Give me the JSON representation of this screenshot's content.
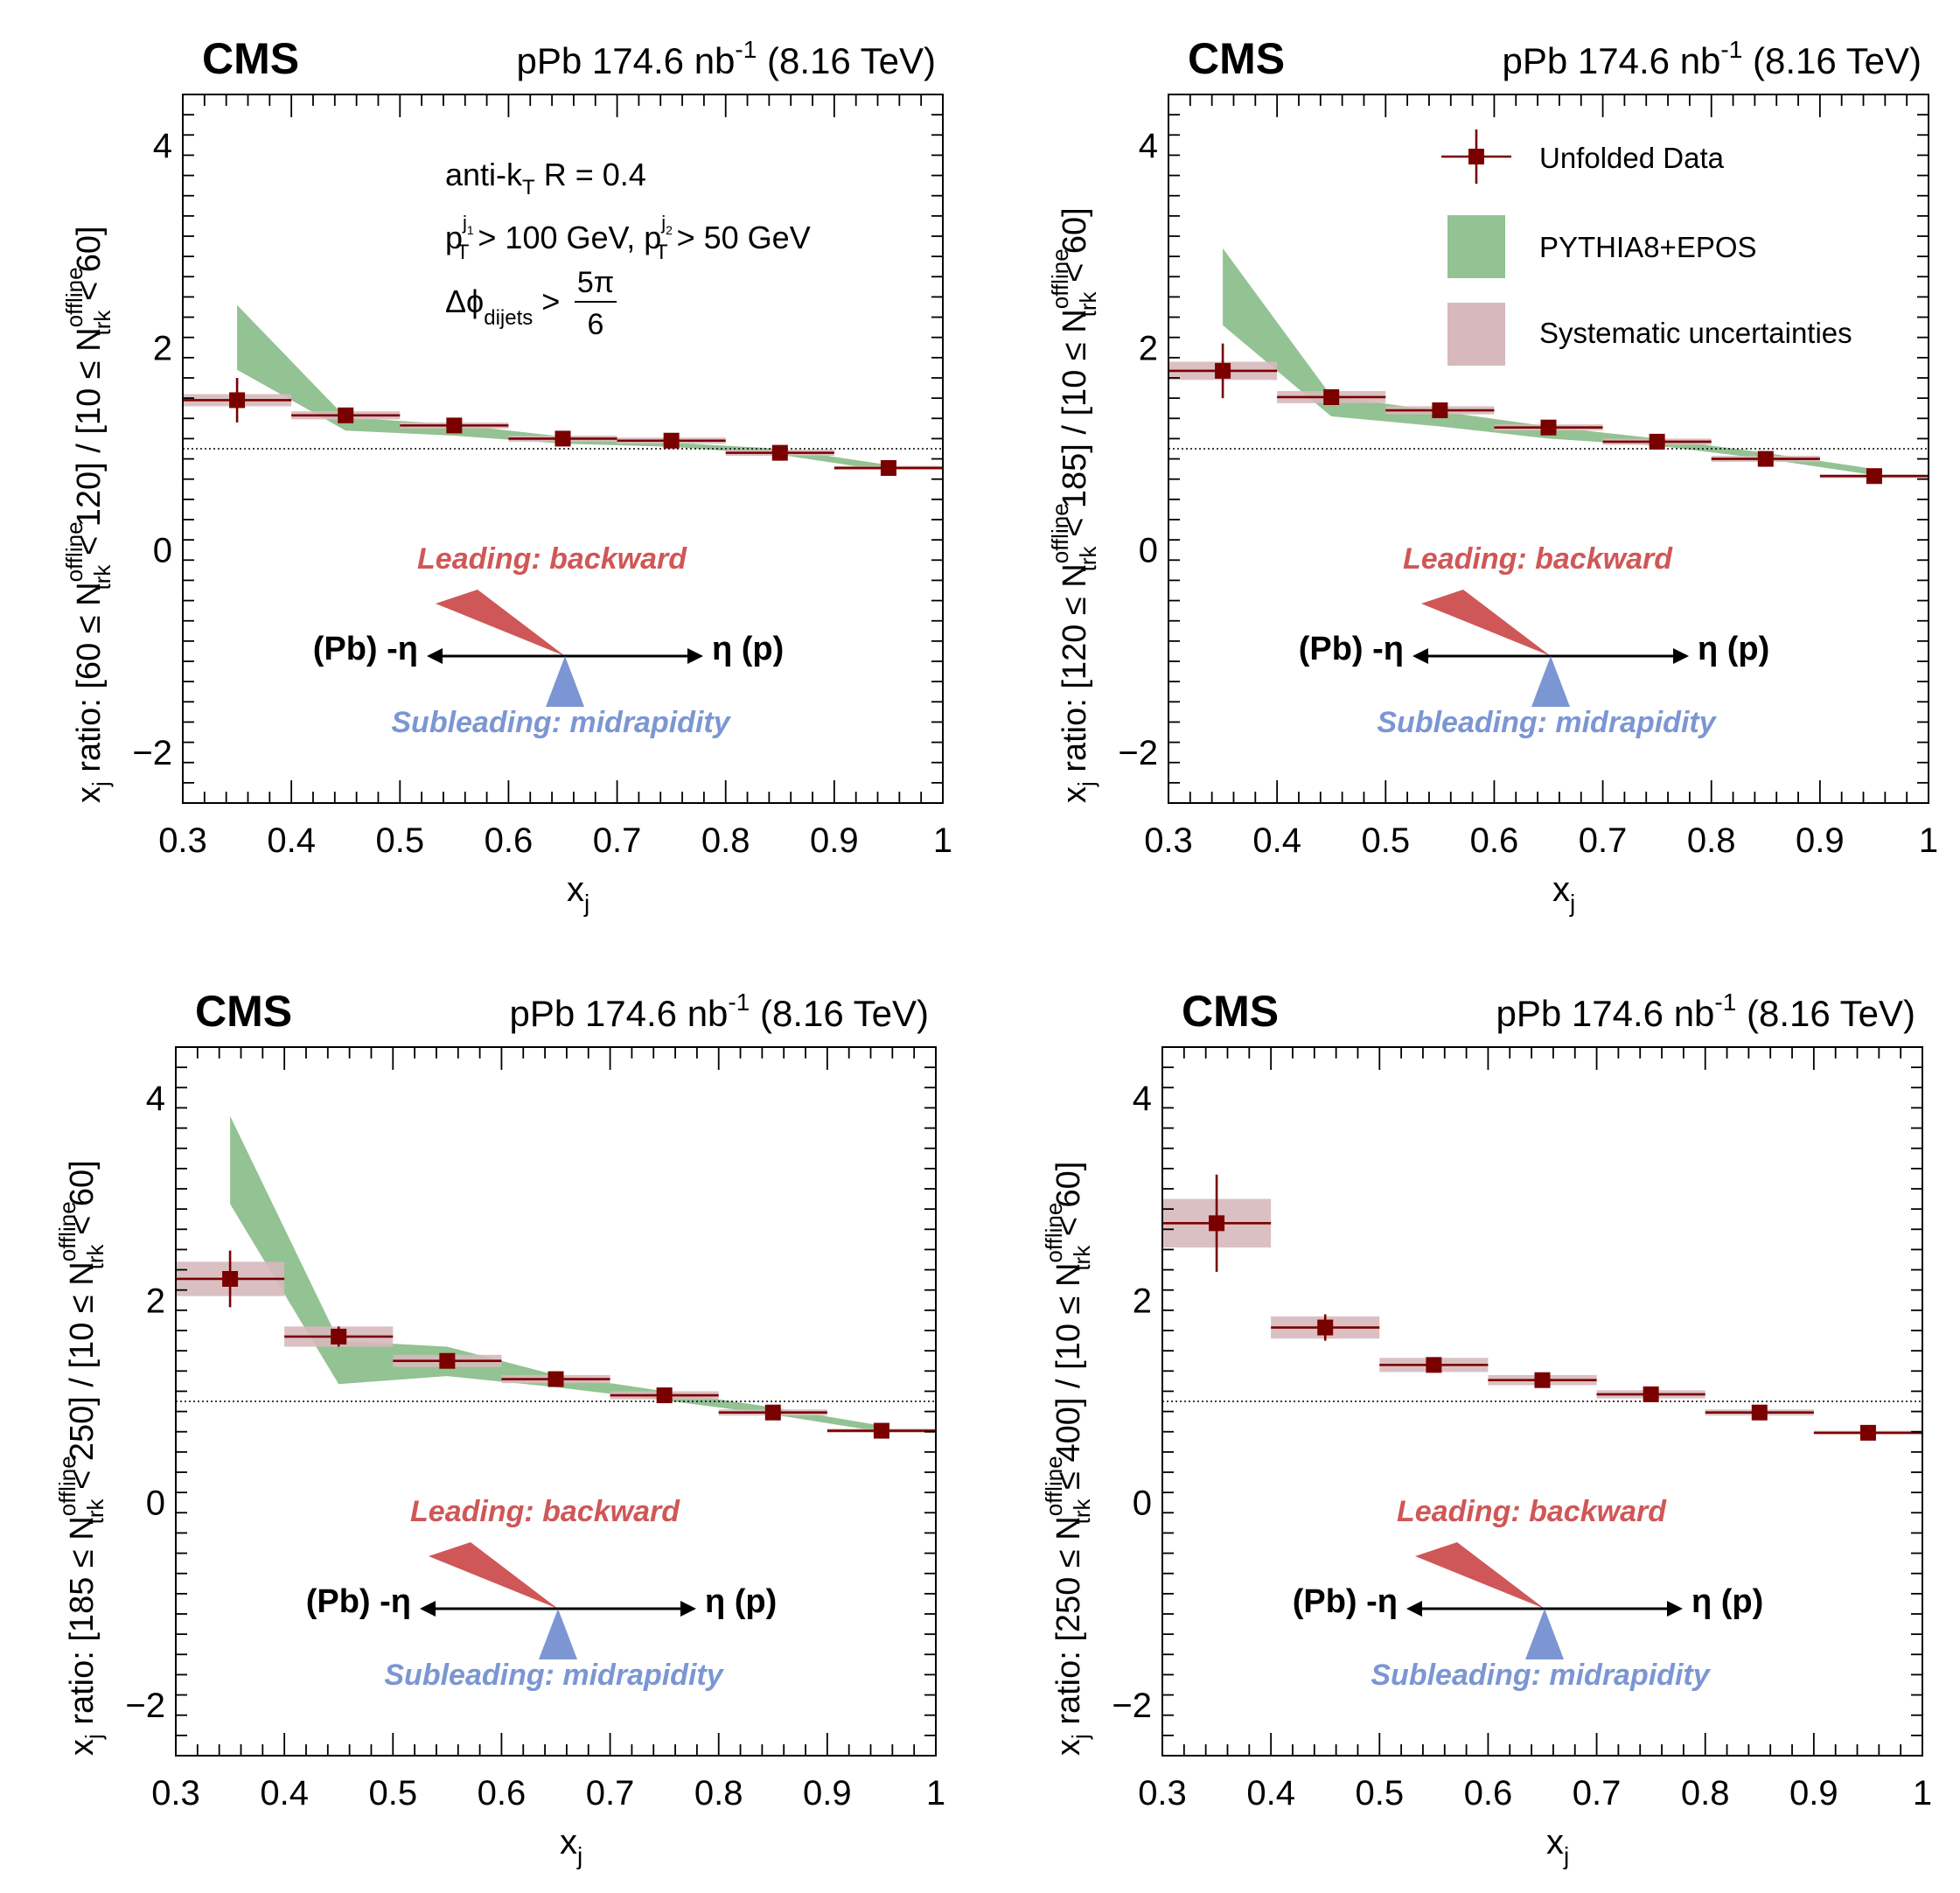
{
  "common": {
    "experiment": "CMS",
    "lumi_prefix": "pPb 174.6 nb",
    "lumi_sup": "-1",
    "energy": "(8.16 TeV)",
    "xlabel": "x",
    "xlabel_sub": "j",
    "xticks": [
      "0.3",
      "0.4",
      "0.5",
      "0.6",
      "0.7",
      "0.8",
      "0.9",
      "1"
    ],
    "yticks": [
      "4",
      "2",
      "0",
      "−2"
    ],
    "dijet_text": {
      "line1": "anti-k",
      "line1_sub": "T",
      "line1_rest": " R = 0.4",
      "line2_a": "p",
      "line2_a_sup": "j",
      "line2_a_sup2": "1",
      "line2_a_sub": "T",
      "line2_b": " > 100 GeV, p",
      "line2_b_sup": "j",
      "line2_b_sup2": "2",
      "line2_b_sub": "T",
      "line2_c": " > 50 GeV",
      "line3_a": "Δϕ",
      "line3_sub": "dijets",
      "line3_gt": ">",
      "line3_num": "5π",
      "line3_den": "6"
    },
    "diagram": {
      "leading": "Leading: backward",
      "subleading": "Subleading: midrapidity",
      "left": "(Pb) -η",
      "right": "η (p)"
    },
    "legend": {
      "data": "Unfolded Data",
      "mc": "PYTHIA8+EPOS",
      "syst": "Systematic uncertainties"
    },
    "colors": {
      "data": "#7a0000",
      "mc_band": "#93c293",
      "syst_box": "#d7b9bc",
      "leading": "#d05757",
      "subleading": "#7b96d2"
    }
  },
  "chart_data": [
    {
      "type": "scatter",
      "ylabel_main": "x",
      "ylabel_text": " ratio: [60 ≤ N",
      "ylabel_rest": " < 120] / [10 ≤ N",
      "ylabel_end": " < 60]",
      "ylabel_sup": "offline",
      "ylabel_sub": "trk",
      "xlim": [
        0.3,
        1.0
      ],
      "ylim": [
        -2.5,
        4.5
      ],
      "reference_line": 1,
      "series": [
        {
          "x": [
            0.35,
            0.45,
            0.55,
            0.65,
            0.75,
            0.85,
            0.95
          ],
          "y": [
            1.48,
            1.33,
            1.23,
            1.1,
            1.08,
            0.96,
            0.81
          ],
          "stat": [
            0.22,
            0.07,
            0.05,
            0.04,
            0.04,
            0.03,
            0.03
          ],
          "syst": [
            0.06,
            0.04,
            0.03,
            0.03,
            0.03,
            0.03,
            0.02
          ]
        }
      ],
      "mc_band": {
        "x": [
          0.35,
          0.45,
          0.55,
          0.65,
          0.75,
          0.85,
          0.95
        ],
        "lo": [
          1.78,
          1.18,
          1.13,
          1.05,
          1.02,
          0.94,
          0.78
        ],
        "hi": [
          2.42,
          1.31,
          1.24,
          1.12,
          1.06,
          1.0,
          0.84
        ]
      }
    },
    {
      "type": "scatter",
      "ylabel_main": "x",
      "ylabel_text": " ratio: [120 ≤ N",
      "ylabel_rest": " < 185] / [10 ≤ N",
      "ylabel_end": " < 60]",
      "ylabel_sup": "offline",
      "ylabel_sub": "trk",
      "xlim": [
        0.3,
        1.0
      ],
      "ylim": [
        -2.5,
        4.5
      ],
      "reference_line": 1,
      "legend_position": "top-right",
      "series": [
        {
          "x": [
            0.35,
            0.45,
            0.55,
            0.65,
            0.75,
            0.85,
            0.95
          ],
          "y": [
            1.77,
            1.51,
            1.38,
            1.21,
            1.07,
            0.9,
            0.73
          ],
          "stat": [
            0.27,
            0.07,
            0.05,
            0.04,
            0.04,
            0.03,
            0.03
          ],
          "syst": [
            0.09,
            0.06,
            0.04,
            0.03,
            0.03,
            0.03,
            0.02
          ]
        }
      ],
      "mc_band": {
        "x": [
          0.35,
          0.45,
          0.55,
          0.65,
          0.75,
          0.85,
          0.95
        ],
        "lo": [
          2.22,
          1.32,
          1.22,
          1.1,
          1.03,
          0.9,
          0.74
        ],
        "hi": [
          2.98,
          1.52,
          1.37,
          1.22,
          1.1,
          0.96,
          0.8
        ]
      }
    },
    {
      "type": "scatter",
      "ylabel_main": "x",
      "ylabel_text": " ratio: [185 ≤ N",
      "ylabel_rest": " < 250] / [10 ≤ N",
      "ylabel_end": " < 60]",
      "ylabel_sup": "offline",
      "ylabel_sub": "trk",
      "xlim": [
        0.3,
        1.0
      ],
      "ylim": [
        -2.5,
        4.5
      ],
      "reference_line": 1,
      "series": [
        {
          "x": [
            0.35,
            0.45,
            0.55,
            0.65,
            0.75,
            0.85,
            0.95
          ],
          "y": [
            2.21,
            1.64,
            1.4,
            1.22,
            1.06,
            0.89,
            0.71
          ],
          "stat": [
            0.28,
            0.1,
            0.06,
            0.05,
            0.04,
            0.03,
            0.03
          ],
          "syst": [
            0.17,
            0.1,
            0.06,
            0.04,
            0.04,
            0.03,
            0.02
          ]
        }
      ],
      "mc_band": {
        "x": [
          0.35,
          0.45,
          0.55,
          0.65,
          0.75,
          0.85,
          0.95
        ],
        "lo": [
          2.95,
          1.17,
          1.25,
          1.14,
          1.01,
          0.87,
          0.7
        ],
        "hi": [
          3.82,
          1.6,
          1.54,
          1.26,
          1.1,
          0.94,
          0.76
        ]
      }
    },
    {
      "type": "scatter",
      "ylabel_main": "x",
      "ylabel_text": " ratio: [250 ≤ N",
      "ylabel_rest": " ≤ 400] / [10 ≤ N",
      "ylabel_end": " < 60]",
      "ylabel_sup": "offline",
      "ylabel_sub": "trk",
      "xlim": [
        0.3,
        1.0
      ],
      "ylim": [
        -2.5,
        4.5
      ],
      "reference_line": 1,
      "series": [
        {
          "x": [
            0.35,
            0.45,
            0.55,
            0.65,
            0.75,
            0.85,
            0.95
          ],
          "y": [
            2.76,
            1.73,
            1.36,
            1.21,
            1.07,
            0.89,
            0.69
          ],
          "stat": [
            0.48,
            0.13,
            0.06,
            0.05,
            0.04,
            0.03,
            0.03
          ],
          "syst": [
            0.24,
            0.11,
            0.07,
            0.05,
            0.04,
            0.03,
            0.02
          ]
        }
      ]
    }
  ]
}
